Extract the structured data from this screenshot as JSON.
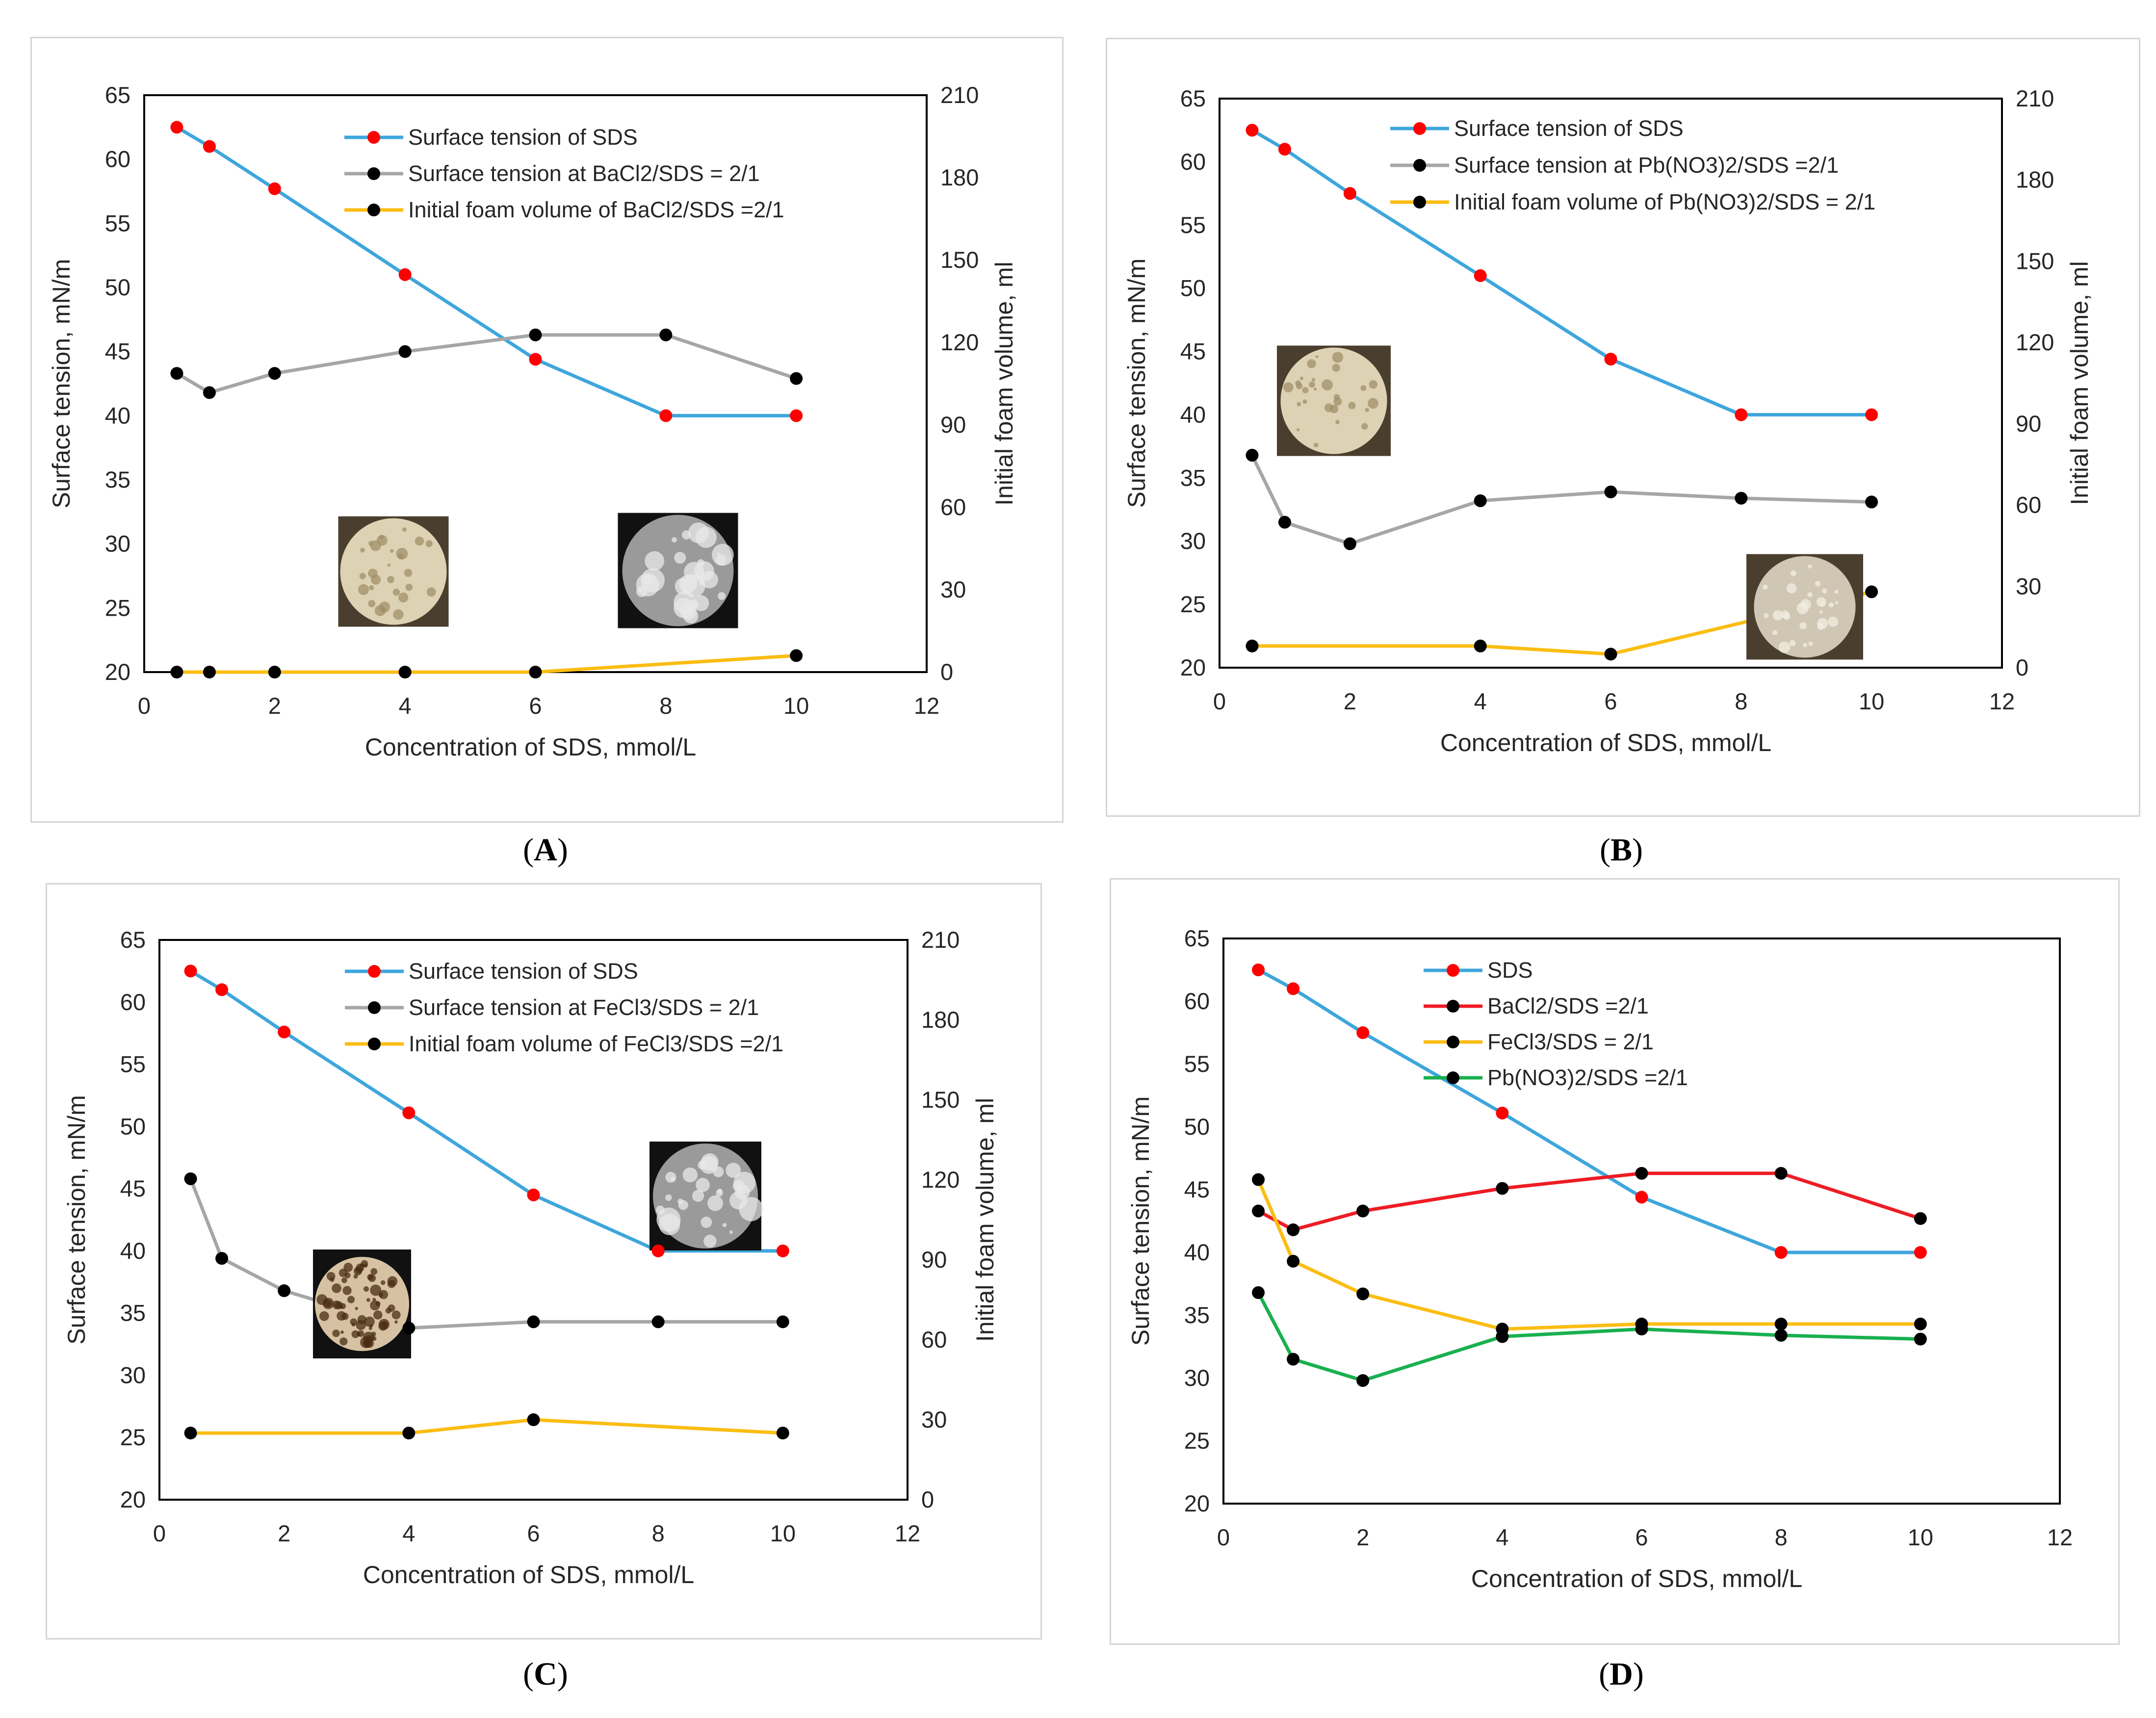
{
  "figure": {
    "captions": [
      "A",
      "B",
      "C",
      "D"
    ]
  },
  "colors": {
    "sds": "#3ea6dc",
    "gray": "#a6a6a6",
    "yellow": "#fbbd13",
    "red": "#ee1c24",
    "green": "#19b04f",
    "marker_red": "#ff0000",
    "marker_black": "#000000"
  },
  "chart_data": [
    {
      "type": "line",
      "panel": "A",
      "xlabel": "Concentration of SDS, mmol/L",
      "ylabel": "Surface tension, mN/m",
      "y2label": "Initial foam volume, ml",
      "xlim": [
        0,
        12
      ],
      "ylim": [
        20,
        65
      ],
      "y2lim": [
        0,
        210
      ],
      "x_ticks": [
        "0",
        "2",
        "4",
        "6",
        "8",
        "10",
        "12"
      ],
      "y_ticks": [
        "20",
        "25",
        "30",
        "35",
        "40",
        "45",
        "50",
        "55",
        "60",
        "65"
      ],
      "y2_ticks": [
        "0",
        "30",
        "60",
        "90",
        "120",
        "150",
        "180",
        "210"
      ],
      "series": [
        {
          "name": "Surface tension of SDS",
          "axis": "y",
          "color": "sds",
          "marker": "marker_red",
          "x": [
            0.5,
            1,
            2,
            4,
            6,
            8,
            10
          ],
          "values": [
            62.5,
            61,
            57.7,
            51,
            44.4,
            40,
            40
          ]
        },
        {
          "name": "Surface tension at BaCl2/SDS = 2/1",
          "axis": "y",
          "color": "gray",
          "marker": "marker_black",
          "x": [
            0.5,
            1,
            2,
            4,
            6,
            8,
            10
          ],
          "values": [
            43.3,
            41.8,
            43.3,
            45,
            46.3,
            46.3,
            42.9
          ]
        },
        {
          "name": "Initial foam volume of BaCl2/SDS =2/1",
          "axis": "y2",
          "color": "yellow",
          "marker": "marker_black",
          "x": [
            0.5,
            1,
            2,
            4,
            6,
            10
          ],
          "values": [
            0,
            0,
            0,
            0,
            0,
            6
          ]
        }
      ],
      "images": [
        "micrograph-icon",
        "micrograph-icon"
      ]
    },
    {
      "type": "line",
      "panel": "B",
      "xlabel": "Concentration of SDS, mmol/L",
      "ylabel": "Surface tension, mN/m",
      "y2label": "Initial foam volume, ml",
      "xlim": [
        0,
        12
      ],
      "ylim": [
        20,
        65
      ],
      "y2lim": [
        0,
        210
      ],
      "x_ticks": [
        "0",
        "2",
        "4",
        "6",
        "8",
        "10",
        "12"
      ],
      "y_ticks": [
        "20",
        "25",
        "30",
        "35",
        "40",
        "45",
        "50",
        "55",
        "60",
        "65"
      ],
      "y2_ticks": [
        "0",
        "30",
        "60",
        "90",
        "120",
        "150",
        "180",
        "210"
      ],
      "series": [
        {
          "name": "Surface tension of SDS",
          "axis": "y",
          "color": "sds",
          "marker": "marker_red",
          "x": [
            0.5,
            1,
            2,
            4,
            6,
            8,
            10
          ],
          "values": [
            62.5,
            61,
            57.5,
            51,
            44.4,
            40,
            40
          ]
        },
        {
          "name": "Surface tension at Pb(NO3)2/SDS =2/1",
          "axis": "y",
          "color": "gray",
          "marker": "marker_black",
          "x": [
            0.5,
            1,
            2,
            4,
            6,
            8,
            10
          ],
          "values": [
            36.8,
            31.5,
            29.8,
            33.2,
            33.9,
            33.4,
            33.1
          ]
        },
        {
          "name": "Initial foam volume of Pb(NO3)2/SDS = 2/1",
          "axis": "y2",
          "color": "yellow",
          "marker": "marker_black",
          "x": [
            0.5,
            4,
            6,
            10
          ],
          "values": [
            8,
            8,
            5,
            28
          ]
        }
      ],
      "images": [
        "micrograph-icon",
        "micrograph-icon"
      ]
    },
    {
      "type": "line",
      "panel": "C",
      "xlabel": "Concentration of SDS, mmol/L",
      "ylabel": "Surface tension, mN/m",
      "y2label": "Initial foam volume, ml",
      "xlim": [
        0,
        12
      ],
      "ylim": [
        20,
        65
      ],
      "y2lim": [
        0,
        210
      ],
      "x_ticks": [
        "0",
        "2",
        "4",
        "6",
        "8",
        "10",
        "12"
      ],
      "y_ticks": [
        "20",
        "25",
        "30",
        "35",
        "40",
        "45",
        "50",
        "55",
        "60",
        "65"
      ],
      "y2_ticks": [
        "0",
        "30",
        "60",
        "90",
        "120",
        "150",
        "180",
        "210"
      ],
      "series": [
        {
          "name": "Surface tension of SDS",
          "axis": "y",
          "color": "sds",
          "marker": "marker_red",
          "x": [
            0.5,
            1,
            2,
            4,
            6,
            8,
            10
          ],
          "values": [
            62.5,
            61,
            57.6,
            51.1,
            44.5,
            40,
            40
          ]
        },
        {
          "name": "Surface tension at FeCl3/SDS = 2/1",
          "axis": "y",
          "color": "gray",
          "marker": "marker_black",
          "x": [
            0.5,
            1,
            2,
            4,
            6,
            8,
            10
          ],
          "values": [
            45.8,
            39.4,
            36.8,
            33.8,
            34.3,
            34.3,
            34.3
          ]
        },
        {
          "name": "Initial foam volume of FeCl3/SDS =2/1",
          "axis": "y2",
          "color": "yellow",
          "marker": "marker_black",
          "x": [
            0.5,
            4,
            6,
            10
          ],
          "values": [
            25,
            25,
            30,
            25
          ]
        }
      ],
      "images": [
        "micrograph-icon",
        "micrograph-icon"
      ]
    },
    {
      "type": "line",
      "panel": "D",
      "xlabel": "Concentration of SDS, mmol/L",
      "ylabel": "Surface tension, mN/m",
      "xlim": [
        0,
        12
      ],
      "ylim": [
        20,
        65
      ],
      "x_ticks": [
        "0",
        "2",
        "4",
        "6",
        "8",
        "10",
        "12"
      ],
      "y_ticks": [
        "20",
        "25",
        "30",
        "35",
        "40",
        "45",
        "50",
        "55",
        "60",
        "65"
      ],
      "series": [
        {
          "name": "SDS",
          "axis": "y",
          "color": "sds",
          "marker": "marker_red",
          "x": [
            0.5,
            1,
            2,
            4,
            6,
            8,
            10
          ],
          "values": [
            62.5,
            61,
            57.5,
            51.1,
            44.4,
            40,
            40
          ]
        },
        {
          "name": "BaCl2/SDS =2/1",
          "axis": "y",
          "color": "red",
          "marker": "marker_black",
          "x": [
            0.5,
            1,
            2,
            4,
            6,
            8,
            10
          ],
          "values": [
            43.3,
            41.8,
            43.3,
            45.1,
            46.3,
            46.3,
            42.7
          ]
        },
        {
          "name": "FeCl3/SDS = 2/1",
          "axis": "y",
          "color": "yellow",
          "marker": "marker_black",
          "x": [
            0.5,
            1,
            2,
            4,
            6,
            8,
            10
          ],
          "values": [
            45.8,
            39.3,
            36.7,
            33.9,
            34.3,
            34.3,
            34.3
          ]
        },
        {
          "name": "Pb(NO3)2/SDS =2/1",
          "axis": "y",
          "color": "green",
          "marker": "marker_black",
          "x": [
            0.5,
            1,
            2,
            4,
            6,
            8,
            10
          ],
          "values": [
            36.8,
            31.5,
            29.8,
            33.3,
            33.9,
            33.4,
            33.1
          ]
        }
      ]
    }
  ]
}
